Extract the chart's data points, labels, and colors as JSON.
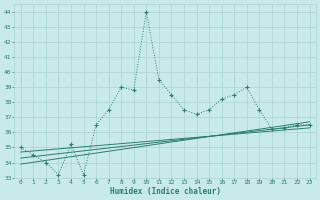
{
  "bg_color": "#c8eae8",
  "line_color": "#2e7d6e",
  "grid_color": "#aad4d0",
  "font_color": "#2e7d6e",
  "xlabel": "Humidex (Indice chaleur)",
  "xlim": [
    -0.5,
    23.5
  ],
  "ylim": [
    33.0,
    44.5
  ],
  "yticks": [
    33,
    34,
    35,
    36,
    37,
    38,
    39,
    40,
    41,
    42,
    43,
    44
  ],
  "xticks": [
    0,
    1,
    2,
    3,
    4,
    5,
    6,
    7,
    8,
    9,
    10,
    11,
    12,
    13,
    14,
    15,
    16,
    17,
    18,
    19,
    20,
    21,
    22,
    23
  ],
  "main_x": [
    0,
    1,
    2,
    3,
    4,
    5,
    6,
    7,
    8,
    9,
    10,
    11,
    12,
    13,
    14,
    15,
    16,
    17,
    18,
    19,
    20,
    21,
    22,
    23
  ],
  "main_y": [
    35.0,
    34.5,
    34.0,
    33.2,
    35.2,
    33.2,
    36.5,
    37.5,
    39.0,
    38.8,
    44.0,
    39.5,
    38.5,
    37.5,
    37.2,
    37.5,
    38.2,
    38.5,
    39.0,
    37.5,
    36.2,
    36.3,
    36.5,
    36.5
  ],
  "reg_lines": [
    {
      "x": [
        0,
        23
      ],
      "y": [
        33.9,
        36.7
      ]
    },
    {
      "x": [
        0,
        23
      ],
      "y": [
        34.3,
        36.5
      ]
    },
    {
      "x": [
        0,
        23
      ],
      "y": [
        34.7,
        36.3
      ]
    }
  ]
}
